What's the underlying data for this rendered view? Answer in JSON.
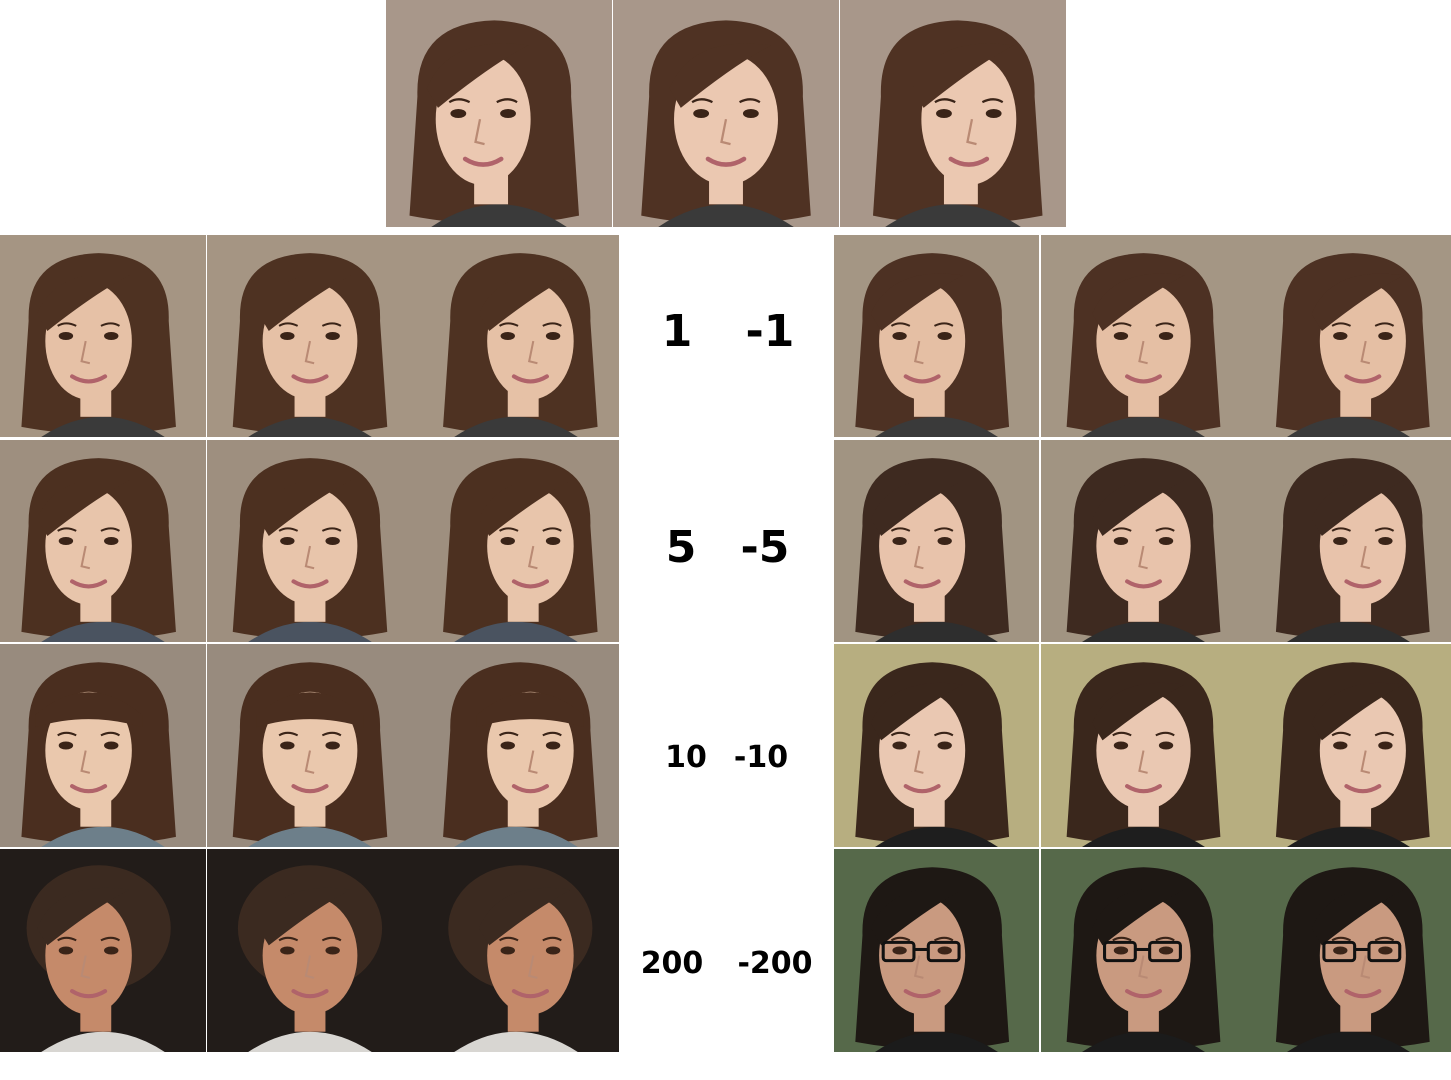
{
  "scale_labels": {
    "row1": {
      "positive": "1",
      "negative": "-1"
    },
    "row2": {
      "positive": "5",
      "negative": "-5"
    },
    "row3": {
      "positive": "10",
      "negative": "-10"
    },
    "row4": {
      "positive": "200",
      "negative": "-200"
    }
  },
  "grid": {
    "reference_row": {
      "views": [
        "left-turned",
        "frontal",
        "right-turned"
      ]
    },
    "left_block": [
      {
        "scale": "1",
        "subject": "young woman, brown hair",
        "bg": "#a59583",
        "skin": "#e6c1a6",
        "hair": "#4e3222",
        "shirt": "#3a3a3a"
      },
      {
        "scale": "5",
        "subject": "young woman, bangs",
        "bg": "#9e8f7f",
        "skin": "#e8c5ab",
        "hair": "#4c3020",
        "shirt": "#4a5360"
      },
      {
        "scale": "10",
        "subject": "child, bowl-cut bangs",
        "bg": "#988b7e",
        "skin": "#eac8ad",
        "hair": "#4a2e1f",
        "shirt": "#6d7f8a"
      },
      {
        "scale": "200",
        "subject": "middle-aged man",
        "bg": "#221c19",
        "skin": "#c58a6a",
        "hair": "#3b2a20",
        "shirt": "#d8d6d2"
      }
    ],
    "right_block": [
      {
        "scale": "-1",
        "subject": "young woman, brown hair",
        "bg": "#a49684",
        "skin": "#e5bfa4",
        "hair": "#4d3123",
        "shirt": "#3a3a3a"
      },
      {
        "scale": "-5",
        "subject": "woman, long dark hair",
        "bg": "#a19482",
        "skin": "#e8c3ab",
        "hair": "#3e2a20",
        "shirt": "#2e2e2e"
      },
      {
        "scale": "-10",
        "subject": "woman, long dark hair",
        "bg": "#b7ae80",
        "skin": "#eac8b2",
        "hair": "#3a271c",
        "shirt": "#1e1e1e"
      },
      {
        "scale": "-200",
        "subject": "woman with glasses",
        "bg": "#56694a",
        "skin": "#c99a80",
        "hair": "#1e1814",
        "shirt": "#1b1b1b"
      }
    ],
    "reference": {
      "bg": "#a8978a",
      "skin": "#ebc8b1",
      "hair": "#4f3223",
      "shirt": "#3a3a3a"
    }
  }
}
